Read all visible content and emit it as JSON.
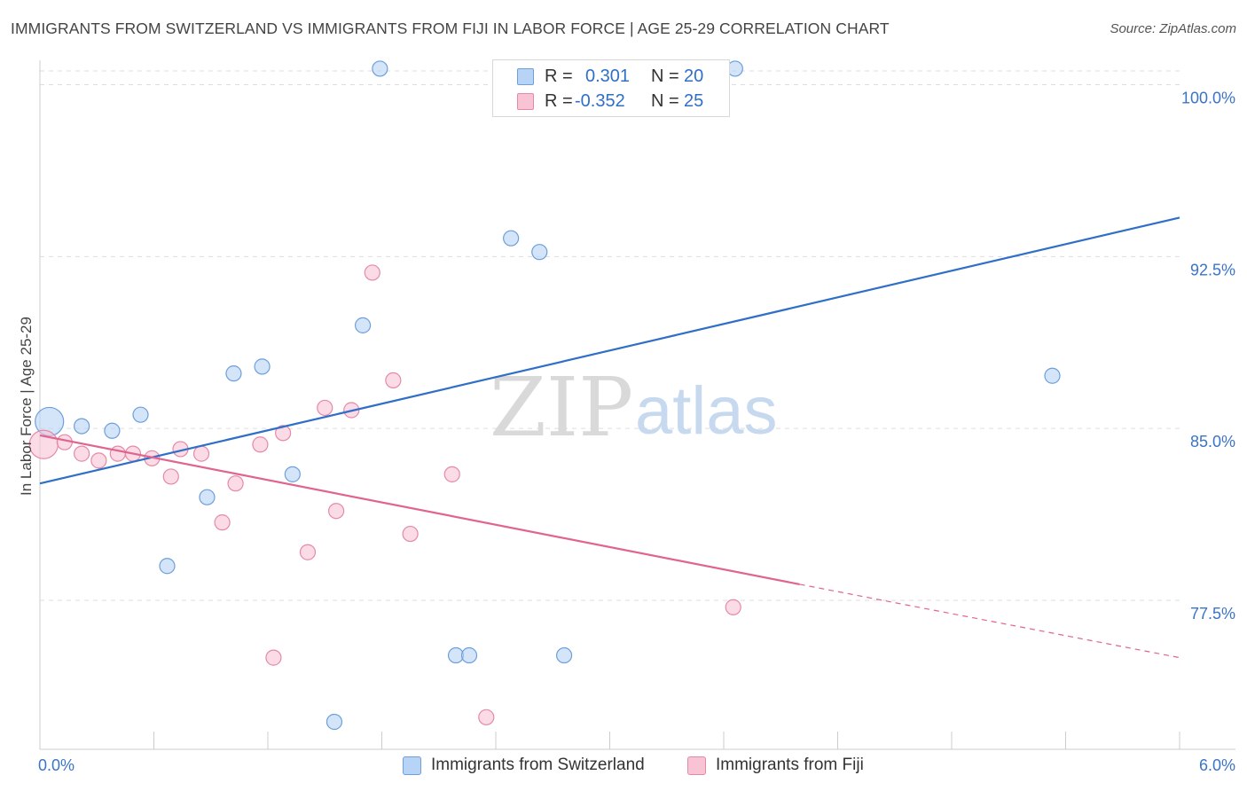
{
  "title": "IMMIGRANTS FROM SWITZERLAND VS IMMIGRANTS FROM FIJI IN LABOR FORCE | AGE 25-29 CORRELATION CHART",
  "source": "Source: ZipAtlas.com",
  "watermark": {
    "zip": "ZIP",
    "atlas": "atlas"
  },
  "stats": {
    "switzerland": {
      "r_label": "R =",
      "r": "0.301",
      "n_label": "N =",
      "n": "20"
    },
    "fiji": {
      "r_label": "R =",
      "r": "-0.352",
      "n_label": "N =",
      "n": "25"
    }
  },
  "legend": {
    "switzerland": "Immigrants from Switzerland",
    "fiji": "Immigrants from Fiji"
  },
  "colors": {
    "switzerland_fill": "#b7d3f5",
    "switzerland_stroke": "#6d9fd9",
    "switzerland_line": "#2f6fc7",
    "fiji_fill": "#f8c3d3",
    "fiji_stroke": "#e58aa6",
    "fiji_line": "#e0648f",
    "tick_label": "#3a74c7",
    "grid": "#dddddd"
  },
  "chart_data": {
    "type": "scatter",
    "title": "IMMIGRANTS FROM SWITZERLAND VS IMMIGRANTS FROM FIJI IN LABOR FORCE | AGE 25-29 CORRELATION CHART",
    "xlabel": "",
    "ylabel": "In Labor Force | Age 25-29",
    "xlim": [
      0.0,
      6.0
    ],
    "ylim": [
      71.0,
      100.6
    ],
    "x_tick_labels": [
      "0.0%",
      "6.0%"
    ],
    "y_ticks": [
      77.5,
      85.0,
      92.5,
      100.0
    ],
    "y_tick_labels": [
      "77.5%",
      "85.0%",
      "92.5%",
      "100.0%"
    ],
    "grid": true,
    "legend_position": "bottom",
    "series": [
      {
        "name": "Immigrants from Switzerland",
        "points": [
          {
            "x": 0.05,
            "y": 85.3,
            "size": "large"
          },
          {
            "x": 0.22,
            "y": 85.1
          },
          {
            "x": 0.38,
            "y": 84.9
          },
          {
            "x": 0.53,
            "y": 85.6
          },
          {
            "x": 0.67,
            "y": 79.0
          },
          {
            "x": 0.88,
            "y": 82.0
          },
          {
            "x": 1.02,
            "y": 87.4
          },
          {
            "x": 1.17,
            "y": 87.7
          },
          {
            "x": 1.33,
            "y": 83.0
          },
          {
            "x": 1.55,
            "y": 72.2
          },
          {
            "x": 1.7,
            "y": 89.5
          },
          {
            "x": 1.79,
            "y": 100.7
          },
          {
            "x": 2.19,
            "y": 75.1
          },
          {
            "x": 2.26,
            "y": 75.1
          },
          {
            "x": 2.48,
            "y": 93.3
          },
          {
            "x": 2.63,
            "y": 92.7
          },
          {
            "x": 2.76,
            "y": 75.1
          },
          {
            "x": 3.49,
            "y": 100.7
          },
          {
            "x": 3.66,
            "y": 100.7
          },
          {
            "x": 5.33,
            "y": 87.3
          }
        ],
        "trend": {
          "x": [
            0.0,
            6.0
          ],
          "y": [
            82.6,
            94.2
          ]
        }
      },
      {
        "name": "Immigrants from Fiji",
        "points": [
          {
            "x": 0.02,
            "y": 84.3,
            "size": "large"
          },
          {
            "x": 0.13,
            "y": 84.4
          },
          {
            "x": 0.22,
            "y": 83.9
          },
          {
            "x": 0.31,
            "y": 83.6
          },
          {
            "x": 0.41,
            "y": 83.9
          },
          {
            "x": 0.49,
            "y": 83.9
          },
          {
            "x": 0.59,
            "y": 83.7
          },
          {
            "x": 0.69,
            "y": 82.9
          },
          {
            "x": 0.74,
            "y": 84.1
          },
          {
            "x": 0.85,
            "y": 83.9
          },
          {
            "x": 0.96,
            "y": 80.9
          },
          {
            "x": 1.03,
            "y": 82.6
          },
          {
            "x": 1.16,
            "y": 84.3
          },
          {
            "x": 1.23,
            "y": 75.0
          },
          {
            "x": 1.28,
            "y": 84.8
          },
          {
            "x": 1.41,
            "y": 79.6
          },
          {
            "x": 1.5,
            "y": 85.9
          },
          {
            "x": 1.56,
            "y": 81.4
          },
          {
            "x": 1.64,
            "y": 85.8
          },
          {
            "x": 1.75,
            "y": 91.8
          },
          {
            "x": 1.86,
            "y": 87.1
          },
          {
            "x": 1.95,
            "y": 80.4
          },
          {
            "x": 2.17,
            "y": 83.0
          },
          {
            "x": 2.35,
            "y": 72.4
          },
          {
            "x": 3.65,
            "y": 77.2
          }
        ],
        "trend": {
          "x": [
            0.0,
            4.0
          ],
          "y": [
            84.7,
            78.2
          ]
        },
        "trend_dashed": {
          "x": [
            4.0,
            6.0
          ],
          "y": [
            78.2,
            75.0
          ]
        }
      }
    ]
  }
}
